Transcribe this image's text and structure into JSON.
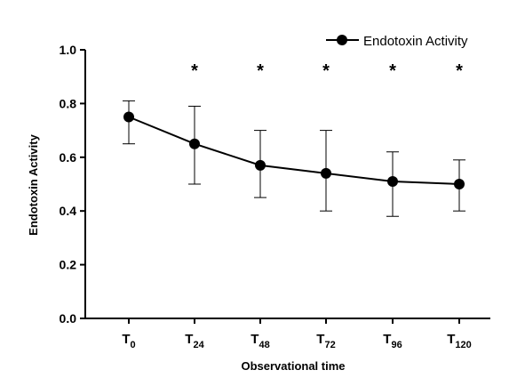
{
  "chart_data": {
    "type": "line",
    "title": "",
    "xlabel": "Observational time",
    "ylabel": "Endotoxin Activity",
    "ylim": [
      0,
      1.0
    ],
    "yticks": [
      "0.0",
      "0.2",
      "0.4",
      "0.6",
      "0.8",
      "1.0"
    ],
    "categories": [
      {
        "base": "T",
        "sub": "0"
      },
      {
        "base": "T",
        "sub": "24"
      },
      {
        "base": "T",
        "sub": "48"
      },
      {
        "base": "T",
        "sub": "72"
      },
      {
        "base": "T",
        "sub": "96"
      },
      {
        "base": "T",
        "sub": "120"
      }
    ],
    "series": [
      {
        "name": "Endotoxin Activity",
        "values": [
          0.75,
          0.65,
          0.57,
          0.54,
          0.51,
          0.5
        ],
        "error_upper": [
          0.81,
          0.79,
          0.7,
          0.7,
          0.62,
          0.59
        ],
        "error_lower": [
          0.65,
          0.5,
          0.45,
          0.4,
          0.38,
          0.4
        ],
        "color": "#000000"
      }
    ],
    "significance": [
      "",
      "*",
      "*",
      "*",
      "*",
      "*"
    ],
    "grid": false,
    "legend_position": "top-right"
  }
}
